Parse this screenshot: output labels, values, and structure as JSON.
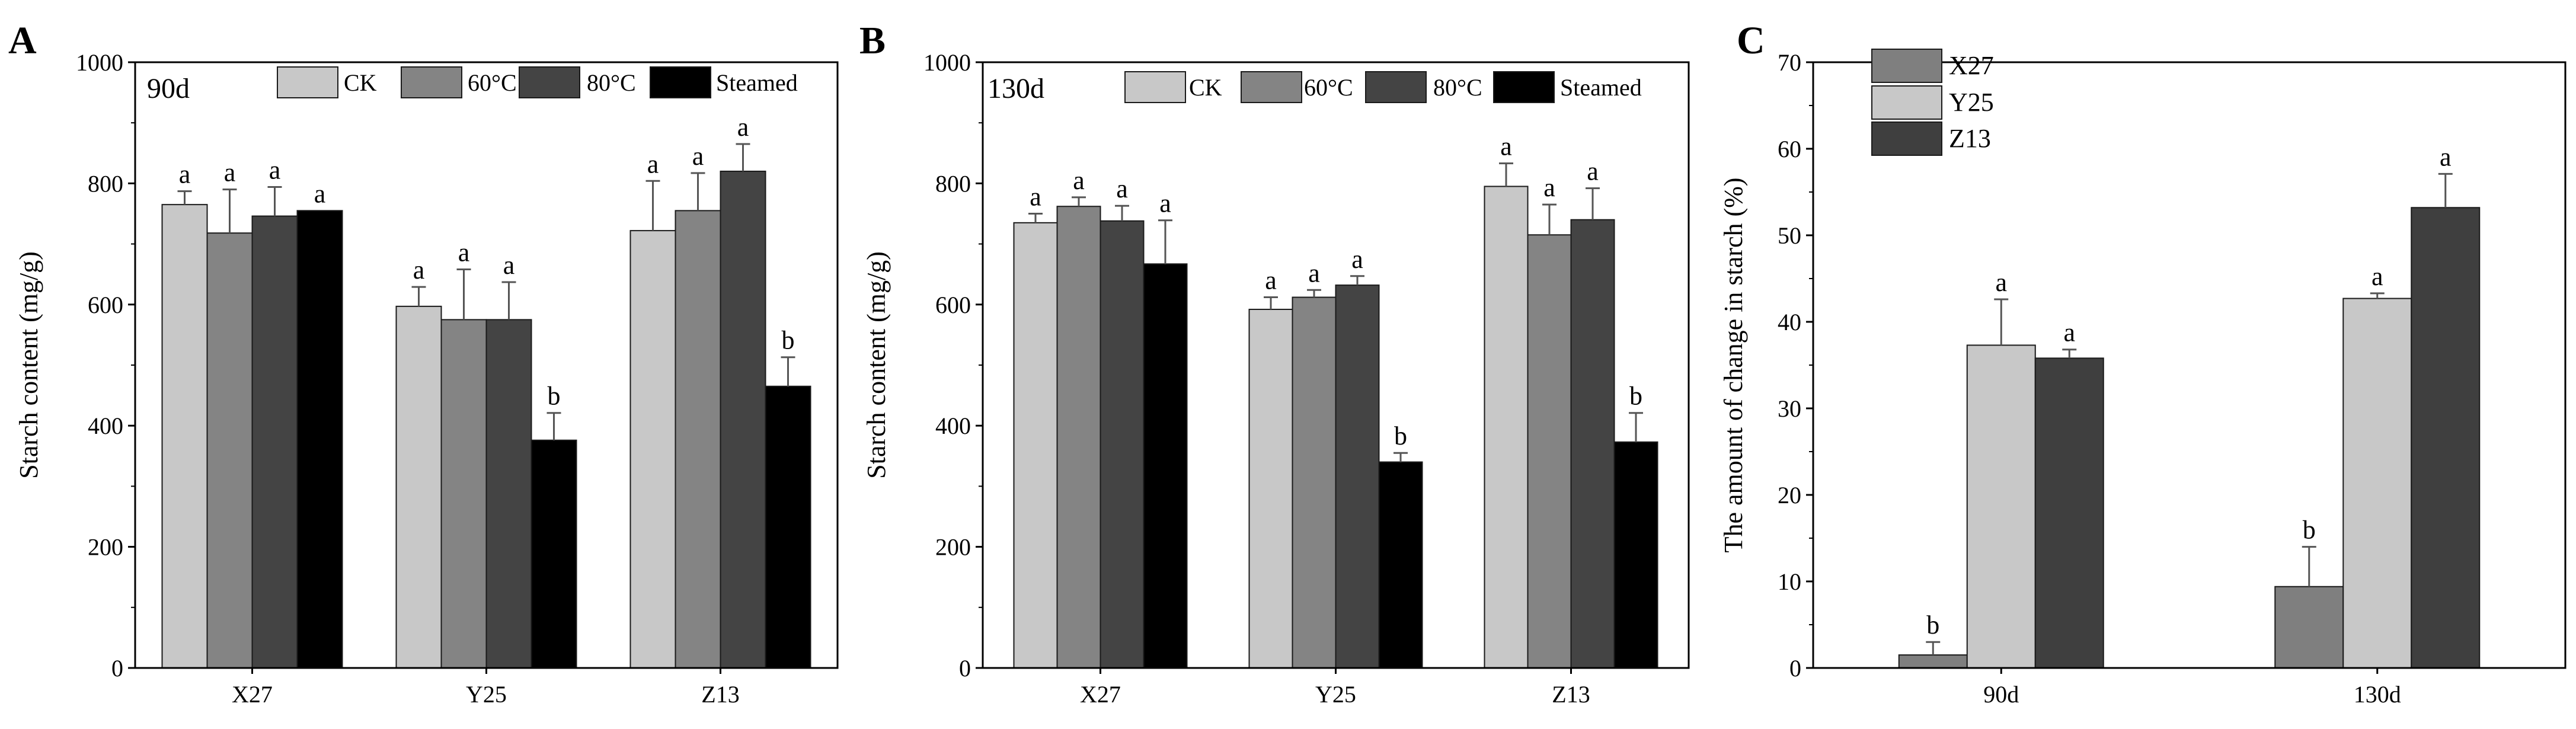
{
  "chart_data": [
    {
      "panel": "A",
      "type": "bar",
      "annotation": "90d",
      "ylabel": "Starch content (mg/g)",
      "xlabel": "",
      "ylim": [
        0,
        1000
      ],
      "yticks": [
        "0",
        "200",
        "400",
        "600",
        "800",
        "1000"
      ],
      "categories": [
        "X27",
        "Y25",
        "Z13"
      ],
      "legend": "top",
      "series": [
        {
          "name": "CK",
          "color": "#c8c8c8",
          "values": [
            765,
            597,
            722
          ],
          "errors": [
            22,
            32,
            82
          ],
          "letters": [
            "a",
            "a",
            "a"
          ]
        },
        {
          "name": "60°C",
          "color": "#848484",
          "values": [
            718,
            575,
            755
          ],
          "errors": [
            72,
            83,
            62
          ],
          "letters": [
            "a",
            "a",
            "a"
          ]
        },
        {
          "name": "80°C",
          "color": "#444444",
          "values": [
            746,
            575,
            820
          ],
          "errors": [
            48,
            62,
            45
          ],
          "letters": [
            "a",
            "a",
            "a"
          ]
        },
        {
          "name": "Steamed",
          "color": "#000000",
          "values": [
            755,
            376,
            465
          ],
          "errors": [
            0,
            45,
            48
          ],
          "letters": [
            "a",
            "b",
            "b"
          ]
        }
      ]
    },
    {
      "panel": "B",
      "type": "bar",
      "annotation": "130d",
      "ylabel": "Starch content (mg/g)",
      "xlabel": "",
      "ylim": [
        0,
        1000
      ],
      "yticks": [
        "0",
        "200",
        "400",
        "600",
        "800",
        "1000"
      ],
      "categories": [
        "X27",
        "Y25",
        "Z13"
      ],
      "legend": "top",
      "series": [
        {
          "name": "CK",
          "color": "#c8c8c8",
          "values": [
            735,
            592,
            795
          ],
          "errors": [
            15,
            20,
            38
          ],
          "letters": [
            "a",
            "a",
            "a"
          ]
        },
        {
          "name": "60°C",
          "color": "#848484",
          "values": [
            762,
            612,
            715
          ],
          "errors": [
            15,
            12,
            50
          ],
          "letters": [
            "a",
            "a",
            "a"
          ]
        },
        {
          "name": "80°C",
          "color": "#444444",
          "values": [
            738,
            632,
            740
          ],
          "errors": [
            25,
            15,
            52
          ],
          "letters": [
            "a",
            "a",
            "a"
          ]
        },
        {
          "name": "Steamed",
          "color": "#000000",
          "values": [
            667,
            340,
            373
          ],
          "errors": [
            72,
            15,
            48
          ],
          "letters": [
            "a",
            "b",
            "b"
          ]
        }
      ]
    },
    {
      "panel": "C",
      "type": "bar",
      "annotation": "",
      "ylabel": "The amount of change in starch (%)",
      "xlabel": "",
      "ylim": [
        0,
        70
      ],
      "yticks": [
        "0",
        "10",
        "20",
        "30",
        "40",
        "50",
        "60",
        "70"
      ],
      "categories": [
        "90d",
        "130d"
      ],
      "legend": "top-left",
      "series": [
        {
          "name": "X27",
          "color": "#7f7f7f",
          "values": [
            1.5,
            9.4
          ],
          "errors": [
            1.5,
            4.6
          ],
          "letters": [
            "b",
            "b"
          ]
        },
        {
          "name": "Y25",
          "color": "#c8c8c8",
          "values": [
            37.3,
            42.7
          ],
          "errors": [
            5.3,
            0.6
          ],
          "letters": [
            "a",
            "a"
          ]
        },
        {
          "name": "Z13",
          "color": "#3f3f3f",
          "values": [
            35.8,
            53.2
          ],
          "errors": [
            1.0,
            3.9
          ],
          "letters": [
            "a",
            "a"
          ]
        }
      ]
    }
  ]
}
